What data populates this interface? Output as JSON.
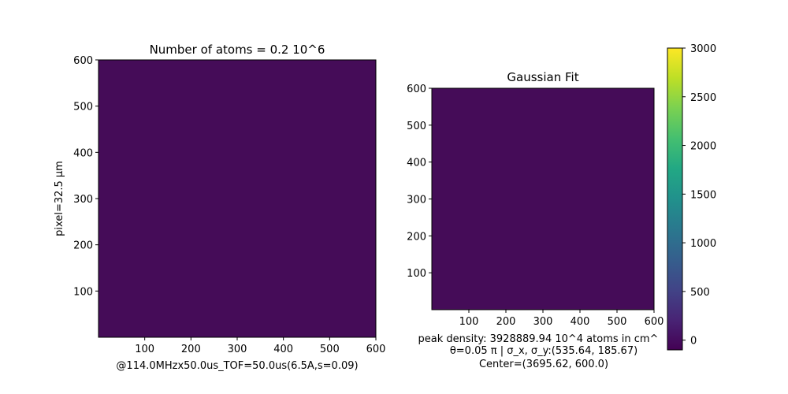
{
  "chart_data": [
    {
      "type": "heatmap",
      "title": "Number of atoms = 0.2 10^6",
      "xlabel": "@114.0MHzx50.0us_TOF=50.0us(6.5A,s=0.09)",
      "ylabel": "pixel=32.5 µm",
      "xlim": [
        0,
        600
      ],
      "ylim": [
        0,
        600
      ],
      "xticks": [
        100,
        200,
        300,
        400,
        500,
        600
      ],
      "yticks": [
        100,
        200,
        300,
        400,
        500,
        600
      ],
      "fill_color": "#450c58",
      "approx_value": 0
    },
    {
      "type": "heatmap",
      "title": "Gaussian Fit",
      "xlabel": "",
      "ylabel": "",
      "xlim": [
        0,
        600
      ],
      "ylim": [
        0,
        600
      ],
      "xticks": [
        100,
        200,
        300,
        400,
        500,
        600
      ],
      "yticks": [
        100,
        200,
        300,
        400,
        500,
        600
      ],
      "fill_color": "#450c58",
      "approx_value": 0,
      "annotation_lines": [
        "peak density: 3928889.94 10^4 atoms in cm^",
        "θ=0.05 π | σ_x, σ_y:(535.64, 185.67)",
        "Center=(3695.62, 600.0)"
      ]
    }
  ],
  "colorbar": {
    "colormap": "viridis",
    "range": [
      -100,
      3000
    ],
    "ticks": [
      0,
      500,
      1000,
      1500,
      2000,
      2500,
      3000
    ]
  }
}
